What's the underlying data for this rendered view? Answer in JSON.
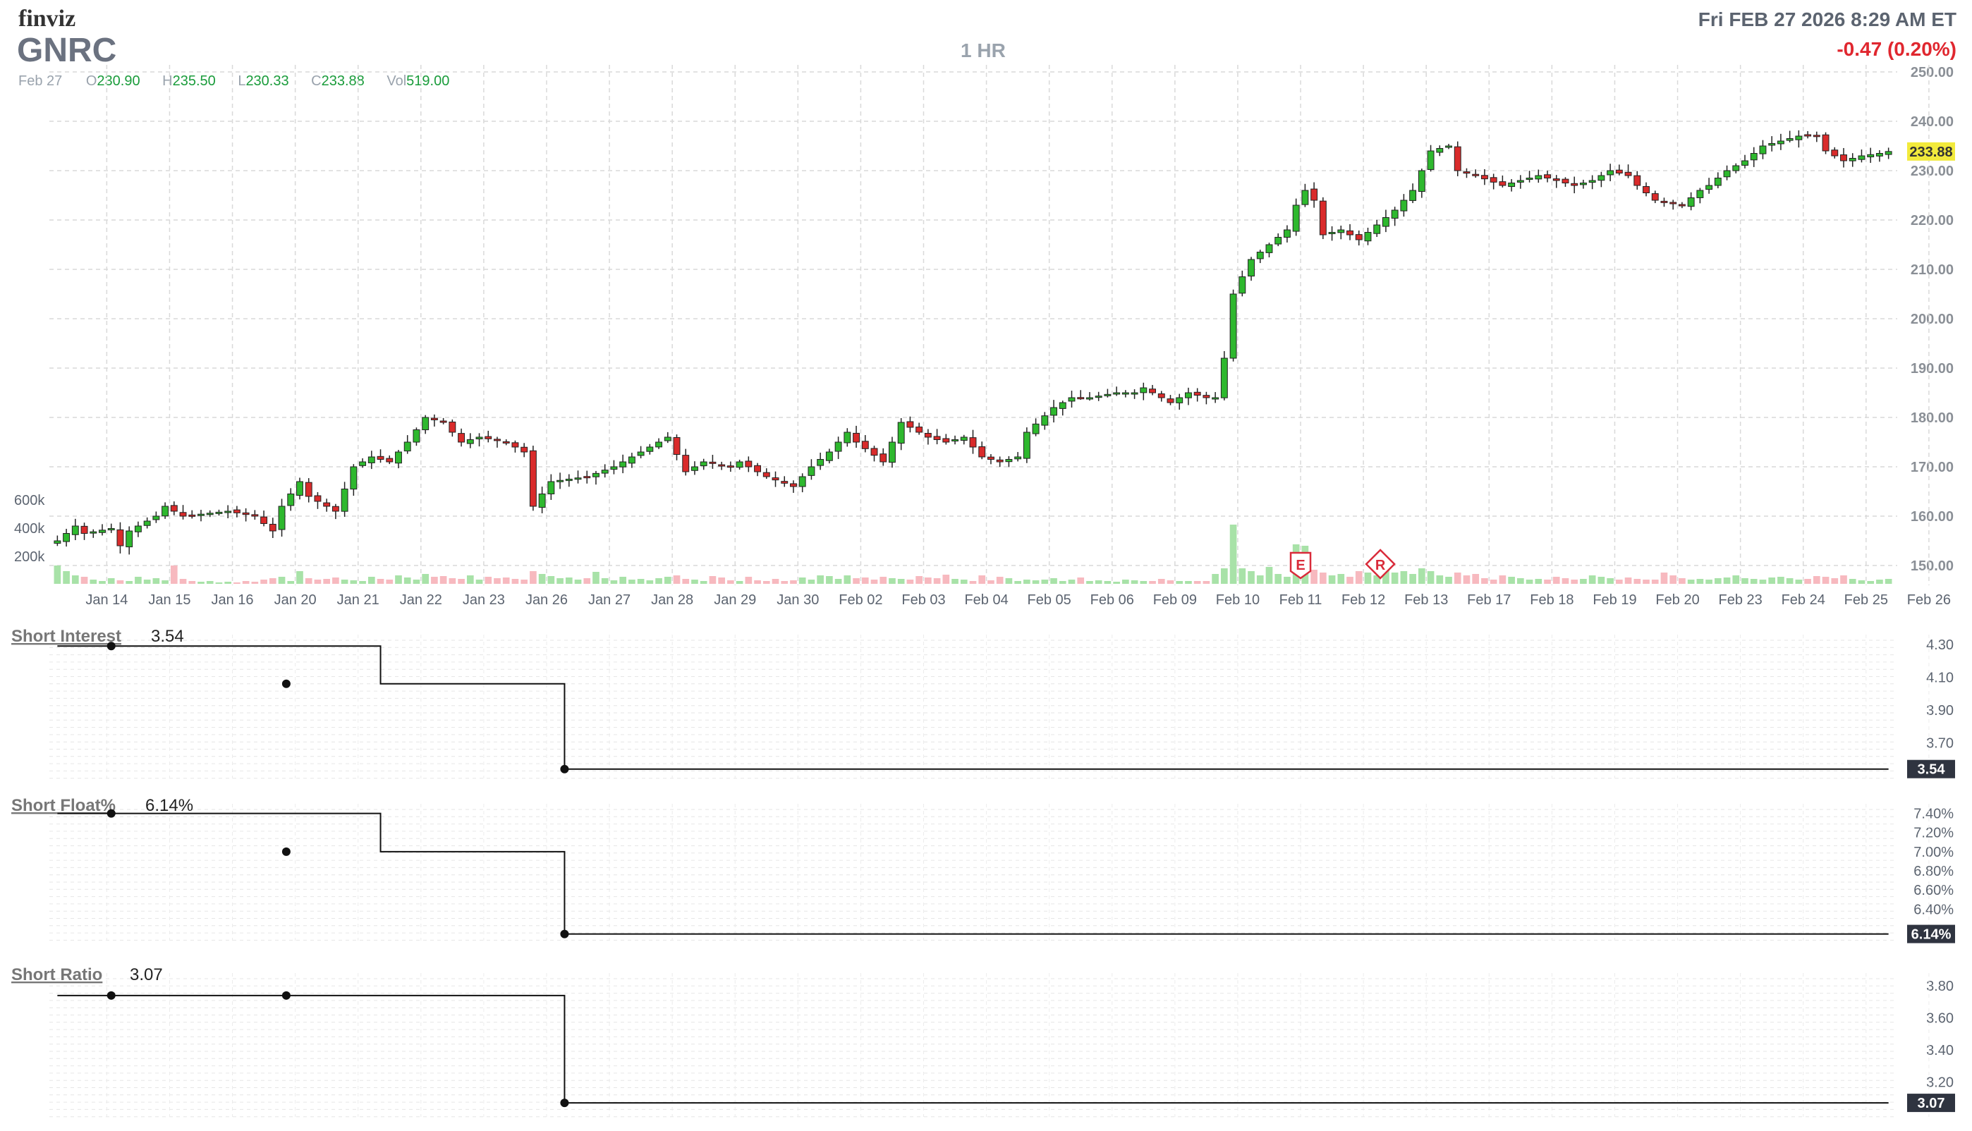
{
  "header": {
    "logo": "finviz",
    "ticker": "GNRC",
    "timeframe": "1 HR",
    "datetime": "Fri FEB 27 2026 8:29 AM ET",
    "change": "-0.47 (0.20%)",
    "ohlc": {
      "date": "Feb 27",
      "o_label": "O",
      "o": "230.90",
      "h_label": "H",
      "h": "235.50",
      "l_label": "L",
      "l": "230.33",
      "c_label": "C",
      "c": "233.88",
      "v_label": "Vol",
      "v": "519.00"
    }
  },
  "colors": {
    "up": "#2eb82e",
    "down": "#d92b2b",
    "up_vol": "#a8e2a8",
    "down_vol": "#f7b9bf",
    "grid": "#d9d9d9",
    "label": "#b21b2a"
  },
  "chart_data": [
    {
      "type": "candlestick",
      "price_axis": {
        "min": 150,
        "max": 250,
        "ticks": [
          "250.00",
          "240.00",
          "230.00",
          "220.00",
          "210.00",
          "200.00",
          "190.00",
          "180.00",
          "170.00",
          "160.00",
          "150.00"
        ]
      },
      "volume_axis": {
        "ticks": [
          "600k",
          "400k",
          "200k"
        ]
      },
      "last_price_label": "233.88",
      "x_tick_labels": [
        "Jan 14",
        "Jan 15",
        "Jan 16",
        "Jan 20",
        "Jan 21",
        "Jan 22",
        "Jan 23",
        "Jan 26",
        "Jan 27",
        "Jan 28",
        "Jan 29",
        "Jan 30",
        "Feb 02",
        "Feb 03",
        "Feb 04",
        "Feb 05",
        "Feb 06",
        "Feb 09",
        "Feb 10",
        "Feb 11",
        "Feb 12",
        "Feb 13",
        "Feb 17",
        "Feb 18",
        "Feb 19",
        "Feb 20",
        "Feb 23",
        "Feb 24",
        "Feb 25",
        "Feb 26"
      ],
      "markers": [
        {
          "label": "E",
          "day": "Feb 11"
        },
        {
          "label": "R",
          "day": "Feb 12"
        }
      ],
      "keypoints": [
        [
          0,
          155
        ],
        [
          2,
          158
        ],
        [
          3,
          156.5
        ],
        [
          6,
          157.5
        ],
        [
          7,
          154
        ],
        [
          8,
          157
        ],
        [
          11,
          160
        ],
        [
          12,
          162
        ],
        [
          14,
          160
        ],
        [
          19,
          161
        ],
        [
          22,
          160
        ],
        [
          24,
          157
        ],
        [
          25,
          162
        ],
        [
          27,
          167
        ],
        [
          28,
          164
        ],
        [
          31,
          161
        ],
        [
          33,
          170
        ],
        [
          35,
          172
        ],
        [
          37,
          171
        ],
        [
          39,
          175
        ],
        [
          41,
          180
        ],
        [
          43,
          179
        ],
        [
          45,
          175
        ],
        [
          47,
          176
        ],
        [
          50,
          175
        ],
        [
          52,
          173
        ],
        [
          53,
          162
        ],
        [
          55,
          167
        ],
        [
          59,
          168
        ],
        [
          62,
          170
        ],
        [
          65,
          173
        ],
        [
          68,
          176
        ],
        [
          70,
          169
        ],
        [
          72,
          171
        ],
        [
          75,
          170
        ],
        [
          76,
          171
        ],
        [
          79,
          168
        ],
        [
          82,
          166
        ],
        [
          84,
          170
        ],
        [
          86,
          173
        ],
        [
          88,
          177
        ],
        [
          89,
          175
        ],
        [
          92,
          171
        ],
        [
          94,
          179
        ],
        [
          97,
          176
        ],
        [
          99,
          175
        ],
        [
          101,
          176
        ],
        [
          103,
          172
        ],
        [
          105,
          171
        ],
        [
          107,
          172
        ],
        [
          108,
          177
        ],
        [
          111,
          182
        ],
        [
          113,
          184
        ],
        [
          115,
          184
        ],
        [
          118,
          185
        ],
        [
          120,
          185
        ],
        [
          121,
          186
        ],
        [
          123,
          184
        ],
        [
          124,
          183
        ],
        [
          126,
          185
        ],
        [
          128,
          184
        ],
        [
          129,
          184
        ],
        [
          130,
          192
        ],
        [
          131,
          205
        ],
        [
          133,
          212
        ],
        [
          135,
          215
        ],
        [
          137,
          218
        ],
        [
          138,
          223
        ],
        [
          139,
          226
        ],
        [
          140,
          224
        ],
        [
          141,
          217
        ],
        [
          143,
          218
        ],
        [
          145,
          216
        ],
        [
          147,
          219
        ],
        [
          149,
          222
        ],
        [
          151,
          226
        ],
        [
          152,
          230
        ],
        [
          153,
          234
        ],
        [
          155,
          235
        ],
        [
          156,
          230
        ],
        [
          158,
          229
        ],
        [
          161,
          227
        ],
        [
          163,
          228
        ],
        [
          165,
          229
        ],
        [
          167,
          228
        ],
        [
          169,
          227
        ],
        [
          171,
          228
        ],
        [
          173,
          230
        ],
        [
          175,
          229
        ],
        [
          176,
          227
        ],
        [
          178,
          224
        ],
        [
          181,
          223
        ],
        [
          183,
          226
        ],
        [
          184,
          227
        ],
        [
          186,
          230
        ],
        [
          188,
          232
        ],
        [
          190,
          235
        ],
        [
          192,
          236
        ],
        [
          194,
          237
        ],
        [
          196,
          237
        ],
        [
          197,
          234
        ],
        [
          199,
          232
        ],
        [
          201,
          233
        ],
        [
          203,
          233.5
        ],
        [
          204,
          233.88
        ]
      ],
      "volume_bars": [
        [
          0,
          130
        ],
        [
          1,
          90
        ],
        [
          2,
          60
        ],
        [
          3,
          50
        ],
        [
          4,
          30
        ],
        [
          5,
          20
        ],
        [
          6,
          40
        ],
        [
          7,
          25
        ],
        [
          8,
          20
        ],
        [
          9,
          50
        ],
        [
          10,
          30
        ],
        [
          11,
          40
        ],
        [
          12,
          25
        ],
        [
          13,
          130
        ],
        [
          14,
          35
        ],
        [
          15,
          20
        ],
        [
          16,
          15
        ],
        [
          17,
          20
        ],
        [
          18,
          10
        ],
        [
          19,
          15
        ],
        [
          20,
          10
        ],
        [
          21,
          20
        ],
        [
          22,
          15
        ],
        [
          23,
          30
        ],
        [
          24,
          40
        ],
        [
          25,
          50
        ],
        [
          26,
          20
        ],
        [
          27,
          90
        ],
        [
          28,
          40
        ],
        [
          29,
          30
        ],
        [
          30,
          35
        ],
        [
          31,
          45
        ],
        [
          32,
          30
        ],
        [
          33,
          25
        ],
        [
          34,
          20
        ],
        [
          35,
          50
        ],
        [
          36,
          35
        ],
        [
          37,
          30
        ],
        [
          38,
          60
        ],
        [
          39,
          45
        ],
        [
          40,
          30
        ],
        [
          41,
          70
        ],
        [
          42,
          50
        ],
        [
          43,
          55
        ],
        [
          44,
          40
        ],
        [
          45,
          35
        ],
        [
          46,
          60
        ],
        [
          47,
          30
        ],
        [
          48,
          50
        ],
        [
          49,
          40
        ],
        [
          50,
          45
        ],
        [
          51,
          35
        ],
        [
          52,
          30
        ],
        [
          53,
          90
        ],
        [
          54,
          70
        ],
        [
          55,
          55
        ],
        [
          56,
          40
        ],
        [
          57,
          45
        ],
        [
          58,
          30
        ],
        [
          59,
          40
        ],
        [
          60,
          85
        ],
        [
          61,
          40
        ],
        [
          62,
          25
        ],
        [
          63,
          50
        ],
        [
          64,
          30
        ],
        [
          65,
          35
        ],
        [
          66,
          25
        ],
        [
          67,
          40
        ],
        [
          68,
          50
        ],
        [
          69,
          60
        ],
        [
          70,
          35
        ],
        [
          71,
          30
        ],
        [
          72,
          20
        ],
        [
          73,
          55
        ],
        [
          74,
          45
        ],
        [
          75,
          25
        ],
        [
          76,
          20
        ],
        [
          77,
          50
        ],
        [
          78,
          25
        ],
        [
          79,
          20
        ],
        [
          80,
          35
        ],
        [
          81,
          20
        ],
        [
          82,
          25
        ],
        [
          83,
          45
        ],
        [
          84,
          30
        ],
        [
          85,
          60
        ],
        [
          86,
          55
        ],
        [
          87,
          35
        ],
        [
          88,
          60
        ],
        [
          89,
          40
        ],
        [
          90,
          45
        ],
        [
          91,
          30
        ],
        [
          92,
          50
        ],
        [
          93,
          40
        ],
        [
          94,
          35
        ],
        [
          95,
          30
        ],
        [
          96,
          55
        ],
        [
          97,
          45
        ],
        [
          98,
          40
        ],
        [
          99,
          65
        ],
        [
          100,
          35
        ],
        [
          101,
          30
        ],
        [
          102,
          20
        ],
        [
          103,
          60
        ],
        [
          104,
          25
        ],
        [
          105,
          50
        ],
        [
          106,
          40
        ],
        [
          107,
          20
        ],
        [
          108,
          30
        ],
        [
          109,
          25
        ],
        [
          110,
          30
        ],
        [
          111,
          40
        ],
        [
          112,
          20
        ],
        [
          113,
          30
        ],
        [
          114,
          45
        ],
        [
          115,
          20
        ],
        [
          116,
          25
        ],
        [
          117,
          20
        ],
        [
          118,
          15
        ],
        [
          119,
          30
        ],
        [
          120,
          25
        ],
        [
          121,
          20
        ],
        [
          122,
          20
        ],
        [
          123,
          35
        ],
        [
          124,
          25
        ],
        [
          125,
          20
        ],
        [
          126,
          20
        ],
        [
          127,
          20
        ],
        [
          128,
          20
        ],
        [
          129,
          70
        ],
        [
          130,
          110
        ],
        [
          131,
          420
        ],
        [
          132,
          110
        ],
        [
          133,
          90
        ],
        [
          134,
          60
        ],
        [
          135,
          120
        ],
        [
          136,
          70
        ],
        [
          137,
          50
        ],
        [
          138,
          280
        ],
        [
          139,
          270
        ],
        [
          140,
          100
        ],
        [
          141,
          80
        ],
        [
          142,
          60
        ],
        [
          143,
          70
        ],
        [
          144,
          50
        ],
        [
          145,
          90
        ],
        [
          146,
          80
        ],
        [
          147,
          60
        ],
        [
          148,
          120
        ],
        [
          149,
          80
        ],
        [
          150,
          90
        ],
        [
          151,
          70
        ],
        [
          152,
          110
        ],
        [
          153,
          90
        ],
        [
          154,
          60
        ],
        [
          155,
          50
        ],
        [
          156,
          80
        ],
        [
          157,
          60
        ],
        [
          158,
          70
        ],
        [
          159,
          40
        ],
        [
          160,
          30
        ],
        [
          161,
          60
        ],
        [
          162,
          50
        ],
        [
          163,
          40
        ],
        [
          164,
          30
        ],
        [
          165,
          35
        ],
        [
          166,
          30
        ],
        [
          167,
          50
        ],
        [
          168,
          40
        ],
        [
          169,
          30
        ],
        [
          170,
          35
        ],
        [
          171,
          60
        ],
        [
          172,
          50
        ],
        [
          173,
          40
        ],
        [
          174,
          30
        ],
        [
          175,
          45
        ],
        [
          176,
          35
        ],
        [
          177,
          30
        ],
        [
          178,
          30
        ],
        [
          179,
          80
        ],
        [
          180,
          60
        ],
        [
          181,
          40
        ],
        [
          182,
          30
        ],
        [
          183,
          35
        ],
        [
          184,
          30
        ],
        [
          185,
          40
        ],
        [
          186,
          45
        ],
        [
          187,
          60
        ],
        [
          188,
          40
        ],
        [
          189,
          35
        ],
        [
          190,
          30
        ],
        [
          191,
          45
        ],
        [
          192,
          50
        ],
        [
          193,
          40
        ],
        [
          194,
          30
        ],
        [
          195,
          35
        ],
        [
          196,
          55
        ],
        [
          197,
          50
        ],
        [
          198,
          40
        ],
        [
          199,
          60
        ],
        [
          200,
          35
        ],
        [
          201,
          25
        ],
        [
          202,
          20
        ],
        [
          203,
          30
        ],
        [
          204,
          35
        ]
      ]
    },
    {
      "type": "line",
      "title": "Short Interest",
      "value_label": "3.54",
      "y_ticks": [
        "4.30",
        "4.10",
        "3.90",
        "3.70"
      ],
      "last_label": "3.54",
      "steps": [
        {
          "bar": 0,
          "value": 4.29
        },
        {
          "bar": 36,
          "value": 4.29
        },
        {
          "bar": 36,
          "value": 4.06
        },
        {
          "bar": 56.5,
          "value": 4.06
        },
        {
          "bar": 56.5,
          "value": 3.54
        },
        {
          "bar": 204,
          "value": 3.54
        }
      ],
      "dots": [
        {
          "bar": 6,
          "value": 4.29
        },
        {
          "bar": 25.5,
          "value": 4.06
        },
        {
          "bar": 56.5,
          "value": 3.54
        }
      ]
    },
    {
      "type": "line",
      "title": "Short Float%",
      "value_label": "6.14%",
      "y_ticks": [
        "7.40%",
        "7.20%",
        "7.00%",
        "6.80%",
        "6.60%",
        "6.40%"
      ],
      "last_label": "6.14%",
      "steps": [
        {
          "bar": 0,
          "value": 7.4
        },
        {
          "bar": 36,
          "value": 7.4
        },
        {
          "bar": 36,
          "value": 7.0
        },
        {
          "bar": 56.5,
          "value": 7.0
        },
        {
          "bar": 56.5,
          "value": 6.14
        },
        {
          "bar": 204,
          "value": 6.14
        }
      ],
      "dots": [
        {
          "bar": 6,
          "value": 7.4
        },
        {
          "bar": 25.5,
          "value": 7.0
        },
        {
          "bar": 56.5,
          "value": 6.14
        }
      ]
    },
    {
      "type": "line",
      "title": "Short Ratio",
      "value_label": "3.07",
      "y_ticks": [
        "3.80",
        "3.60",
        "3.40",
        "3.20"
      ],
      "last_label": "3.07",
      "steps": [
        {
          "bar": 0,
          "value": 3.74
        },
        {
          "bar": 56.5,
          "value": 3.74
        },
        {
          "bar": 56.5,
          "value": 3.07
        },
        {
          "bar": 204,
          "value": 3.07
        }
      ],
      "dots": [
        {
          "bar": 6,
          "value": 3.74
        },
        {
          "bar": 25.5,
          "value": 3.74
        },
        {
          "bar": 56.5,
          "value": 3.07
        }
      ]
    }
  ]
}
